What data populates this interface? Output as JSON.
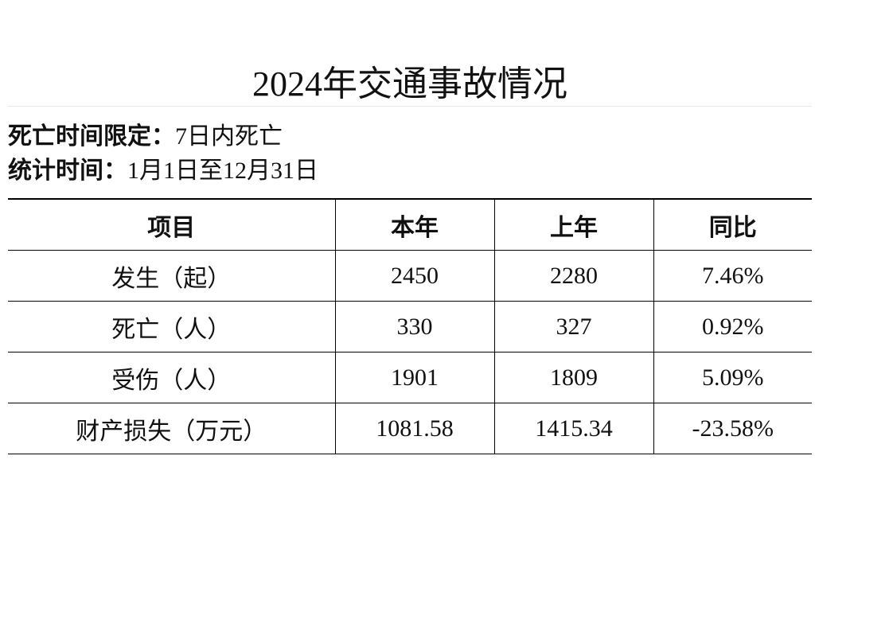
{
  "title": "2024年交通事故情况",
  "notes": [
    {
      "label": "死亡时间限定：",
      "value": "7日内死亡"
    },
    {
      "label": "统计时间：",
      "value": "1月1日至12月31日"
    }
  ],
  "table": {
    "header": [
      "项目",
      "本年",
      "上年",
      "同比"
    ],
    "rows": [
      [
        "发生（起）",
        "2450",
        "2280",
        "7.46%"
      ],
      [
        "死亡（人）",
        "330",
        "327",
        "0.92%"
      ],
      [
        "受伤（人）",
        "1901",
        "1809",
        "5.09%"
      ],
      [
        "财产损失（万元）",
        "1081.58",
        "1415.34",
        "-23.58%"
      ]
    ]
  }
}
